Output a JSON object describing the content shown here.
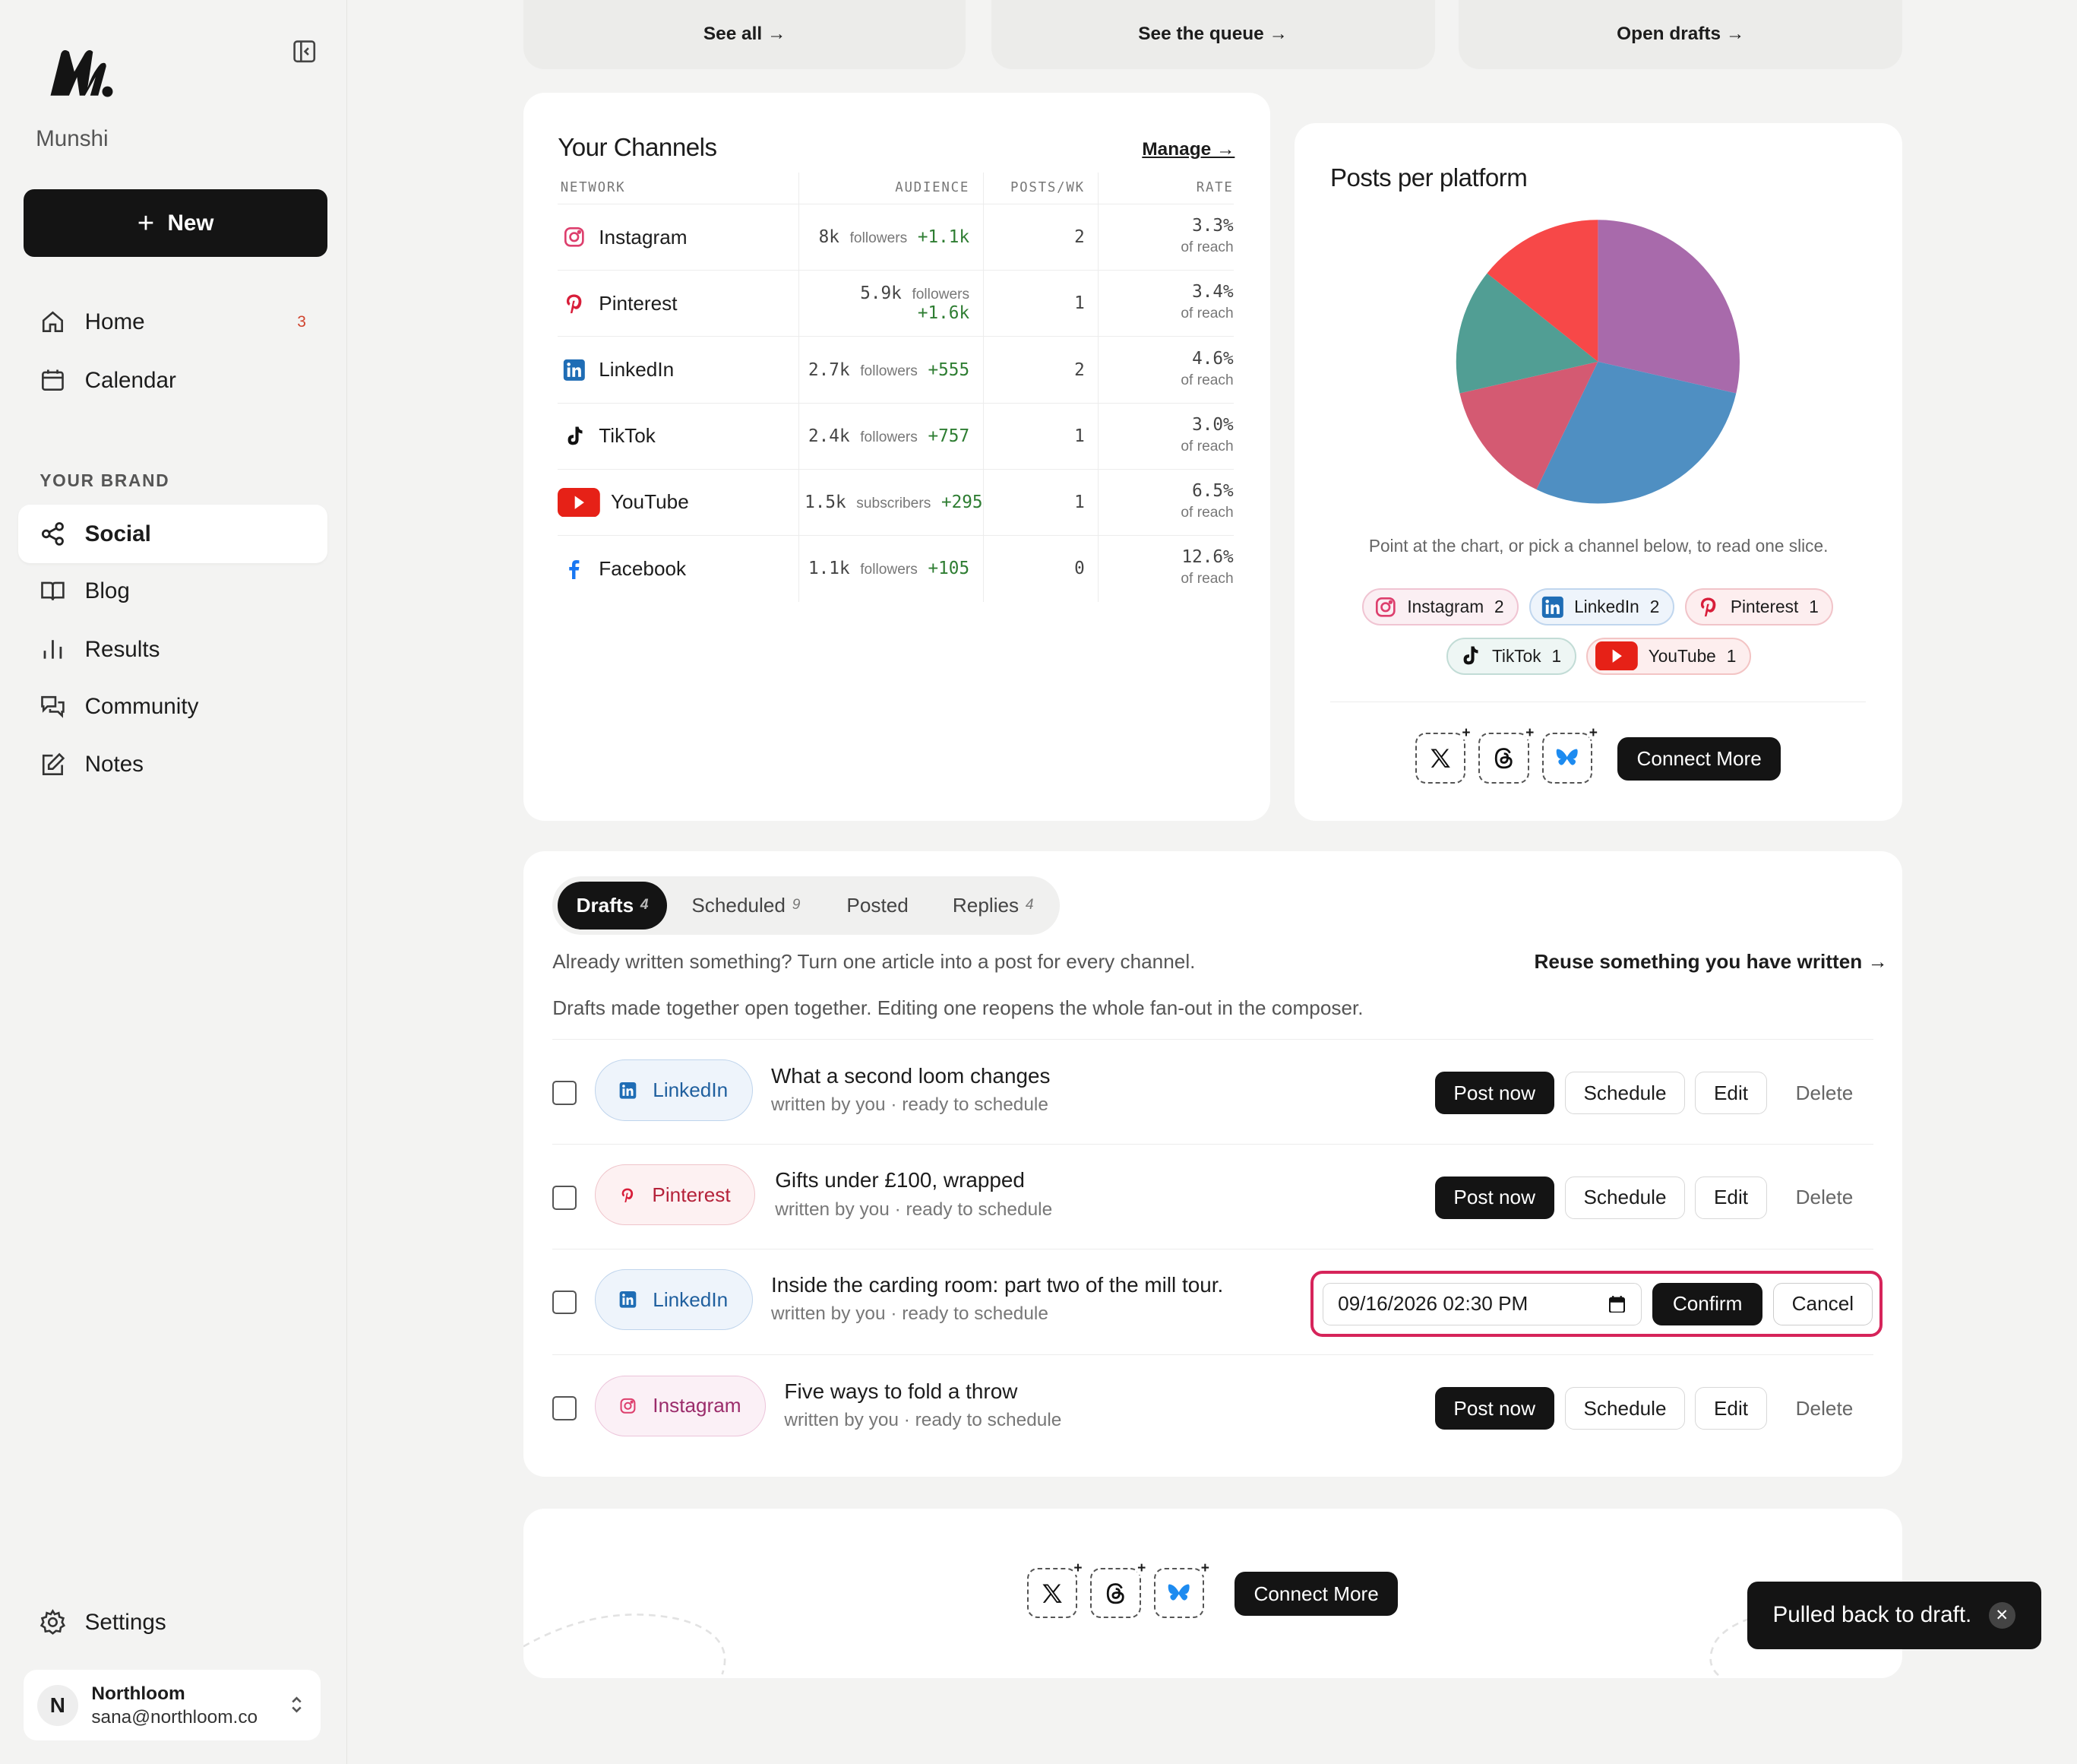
{
  "app": {
    "name": "Munshi",
    "new_label": "New"
  },
  "sidebar": {
    "items": [
      {
        "label": "Home",
        "badge": "3"
      },
      {
        "label": "Calendar"
      }
    ],
    "section_label": "YOUR BRAND",
    "brand_items": [
      {
        "label": "Social"
      },
      {
        "label": "Blog"
      },
      {
        "label": "Results"
      },
      {
        "label": "Community"
      },
      {
        "label": "Notes"
      }
    ],
    "settings_label": "Settings",
    "user": {
      "initial": "N",
      "name": "Northloom",
      "email": "sana@northloom.co"
    }
  },
  "top_cards": [
    {
      "link": "See all →"
    },
    {
      "link": "See the queue →"
    },
    {
      "link": "Open drafts →"
    }
  ],
  "channels": {
    "title": "Your Channels",
    "manage": "Manage →",
    "headers": [
      "NETWORK",
      "AUDIENCE",
      "POSTS/WK",
      "RATE"
    ],
    "rows": [
      {
        "network": "Instagram",
        "audience": "8k",
        "unit": "followers",
        "growth": "+1.1k",
        "posts": "2",
        "rate": "3.3%",
        "rate_sub": "of reach"
      },
      {
        "network": "Pinterest",
        "audience": "5.9k",
        "unit": "followers",
        "growth": "+1.6k",
        "posts": "1",
        "rate": "3.4%",
        "rate_sub": "of reach"
      },
      {
        "network": "LinkedIn",
        "audience": "2.7k",
        "unit": "followers",
        "growth": "+555",
        "posts": "2",
        "rate": "4.6%",
        "rate_sub": "of reach"
      },
      {
        "network": "TikTok",
        "audience": "2.4k",
        "unit": "followers",
        "growth": "+757",
        "posts": "1",
        "rate": "3.0%",
        "rate_sub": "of reach"
      },
      {
        "network": "YouTube",
        "audience": "1.5k",
        "unit": "subscribers",
        "growth": "+295",
        "posts": "1",
        "rate": "6.5%",
        "rate_sub": "of reach"
      },
      {
        "network": "Facebook",
        "audience": "1.1k",
        "unit": "followers",
        "growth": "+105",
        "posts": "0",
        "rate": "12.6%",
        "rate_sub": "of reach"
      }
    ]
  },
  "platform_chart": {
    "title": "Posts per platform",
    "hint": "Point at the chart, or pick a channel below, to read one slice.",
    "legend": [
      {
        "label": "Instagram",
        "count": "2"
      },
      {
        "label": "LinkedIn",
        "count": "2"
      },
      {
        "label": "Pinterest",
        "count": "1"
      },
      {
        "label": "TikTok",
        "count": "1"
      },
      {
        "label": "YouTube",
        "count": "1"
      }
    ],
    "connect_label": "Connect More"
  },
  "chart_data": {
    "type": "pie",
    "title": "Posts per platform",
    "categories": [
      "Instagram",
      "LinkedIn",
      "Pinterest",
      "TikTok",
      "YouTube"
    ],
    "values": [
      2,
      2,
      1,
      1,
      1
    ],
    "colors": [
      "#a86aab",
      "#4f8fc2",
      "#d45a72",
      "#519e94",
      "#f74848"
    ]
  },
  "posts": {
    "tabs": [
      {
        "label": "Drafts",
        "count": "4"
      },
      {
        "label": "Scheduled",
        "count": "9"
      },
      {
        "label": "Posted",
        "count": ""
      },
      {
        "label": "Replies",
        "count": "4"
      }
    ],
    "reuse_text": "Already written something? Turn one article into a post for every channel.",
    "reuse_link": "Reuse something you have written →",
    "note": "Drafts made together open together. Editing one reopens the whole fan-out in the composer.",
    "rows": [
      {
        "channel": "LinkedIn",
        "title": "What a second loom changes",
        "sub": "written by you · ready to schedule"
      },
      {
        "channel": "Pinterest",
        "title": "Gifts under £100, wrapped",
        "sub": "written by you · ready to schedule"
      },
      {
        "channel": "LinkedIn",
        "title": "Inside the carding room: part two of the mill tour.",
        "sub": "written by you · ready to schedule"
      },
      {
        "channel": "Instagram",
        "title": "Five ways to fold a throw",
        "sub": "written by you · ready to schedule"
      }
    ],
    "actions": {
      "post_now": "Post now",
      "schedule": "Schedule",
      "edit": "Edit",
      "delete": "Delete"
    },
    "schedule_editor": {
      "value": "09/16/2026 02:30 PM",
      "confirm": "Confirm",
      "cancel": "Cancel"
    }
  },
  "bottom": {
    "connect_label": "Connect More"
  },
  "toast": {
    "message": "Pulled back to draft.",
    "close": "✕"
  },
  "colors": {
    "accent": "#141414",
    "highlight": "#d6245a",
    "growth": "#2e7d32"
  }
}
